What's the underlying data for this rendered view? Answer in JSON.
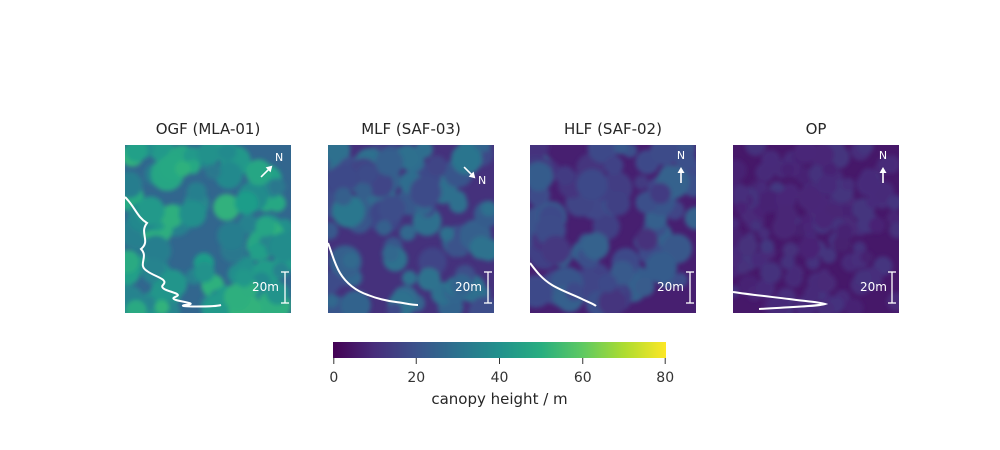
{
  "chart_data": {
    "type": "heatmap",
    "colormap": "viridis",
    "panels": [
      {
        "title": "OGF (MLA-01)",
        "mean_canopy_height": 42,
        "height_variability": 10,
        "north_direction_deg": 45,
        "north_label": "N",
        "scale_bar_label": "20m",
        "scale_bar_length_m": 20,
        "profile": "white vertical height-density curve"
      },
      {
        "title": "MLF (SAF-03)",
        "mean_canopy_height": 24,
        "height_variability": 8,
        "north_direction_deg": 135,
        "north_label": "N",
        "scale_bar_label": "20m",
        "scale_bar_length_m": 20,
        "profile": "white vertical height-density curve"
      },
      {
        "title": "HLF (SAF-02)",
        "mean_canopy_height": 18,
        "height_variability": 7,
        "north_direction_deg": 0,
        "north_label": "N",
        "scale_bar_label": "20m",
        "scale_bar_length_m": 20,
        "profile": "white vertical height-density curve"
      },
      {
        "title": "OP",
        "mean_canopy_height": 10,
        "height_variability": 3,
        "north_direction_deg": 0,
        "north_label": "N",
        "scale_bar_label": "20m",
        "scale_bar_length_m": 20,
        "profile": "white vertical height-density curve"
      }
    ],
    "colorbar": {
      "label": "canopy height / m",
      "range": [
        0,
        80
      ],
      "ticks": [
        0,
        20,
        40,
        60,
        80
      ],
      "tick_labels": [
        "0",
        "20",
        "40",
        "60",
        "80"
      ]
    }
  }
}
